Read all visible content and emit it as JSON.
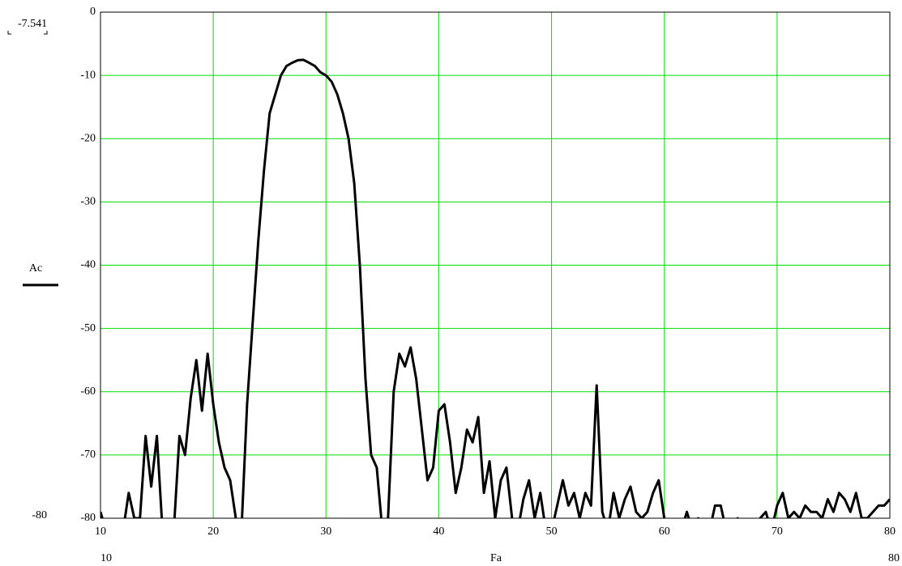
{
  "chart_data": {
    "type": "line",
    "y_label": "Ac",
    "x_label": "Fa",
    "range_labels": {
      "y_top": "-7.541",
      "y_bottom": "-80",
      "x_left": "10",
      "x_right": "80"
    },
    "xlim": [
      10,
      80
    ],
    "ylim": [
      -80,
      0
    ],
    "xticks": [
      10,
      20,
      30,
      40,
      50,
      60,
      70,
      80
    ],
    "yticks": [
      0,
      -10,
      -20,
      -30,
      -40,
      -50,
      -60,
      -70,
      -80
    ],
    "grid": true,
    "grid_color": "#00dd00",
    "x": [
      10,
      10.5,
      11,
      11.5,
      12,
      12.5,
      13,
      13.5,
      14,
      14.5,
      15,
      15.5,
      16,
      16.5,
      17,
      17.5,
      18,
      18.5,
      19,
      19.5,
      20,
      20.5,
      21,
      21.5,
      22,
      22.5,
      23,
      23.5,
      24,
      24.5,
      25,
      25.5,
      26,
      26.5,
      27,
      27.5,
      28,
      28.5,
      29,
      29.5,
      30,
      30.5,
      31,
      31.5,
      32,
      32.5,
      33,
      33.5,
      34,
      34.5,
      35,
      35.5,
      36,
      36.5,
      37,
      37.5,
      38,
      38.5,
      39,
      39.5,
      40,
      40.5,
      41,
      41.5,
      42,
      42.5,
      43,
      43.5,
      44,
      44.5,
      45,
      45.5,
      46,
      46.5,
      47,
      47.5,
      48,
      48.5,
      49,
      49.5,
      50,
      50.5,
      51,
      51.5,
      52,
      52.5,
      53,
      53.5,
      54,
      54.5,
      55,
      55.5,
      56,
      56.5,
      57,
      57.5,
      58,
      58.5,
      59,
      59.5,
      60,
      60.5,
      61,
      61.5,
      62,
      62.5,
      63,
      63.5,
      64,
      64.5,
      65,
      65.5,
      66,
      66.5,
      67,
      67.5,
      68,
      68.5,
      69,
      69.5,
      70,
      70.5,
      71,
      71.5,
      72,
      72.5,
      73,
      73.5,
      74,
      74.5,
      75,
      75.5,
      76,
      76.5,
      77,
      77.5,
      78,
      78.5,
      79,
      79.5,
      80
    ],
    "series": [
      {
        "name": "Ac",
        "color": "#000000",
        "values": [
          -79,
          -82,
          -82,
          -82,
          -82,
          -76,
          -80,
          -80,
          -67,
          -75,
          -67,
          -82,
          -82,
          -82,
          -67,
          -70,
          -61,
          -55,
          -63,
          -54,
          -62,
          -68,
          -72,
          -74,
          -80,
          -82,
          -62,
          -49,
          -36,
          -25,
          -16,
          -13,
          -10,
          -8.5,
          -8,
          -7.6,
          -7.541,
          -8,
          -8.5,
          -9.5,
          -10,
          -11,
          -13,
          -16,
          -20,
          -27,
          -40,
          -58,
          -70,
          -72,
          -82,
          -80,
          -60,
          -54,
          -56,
          -53,
          -58,
          -66,
          -74,
          -72,
          -63,
          -62,
          -68,
          -76,
          -72,
          -66,
          -68,
          -64,
          -76,
          -71,
          -80,
          -74,
          -72,
          -80,
          -82,
          -77,
          -74,
          -80,
          -76,
          -82,
          -82,
          -78,
          -74,
          -78,
          -76,
          -80,
          -76,
          -78,
          -59,
          -79,
          -82,
          -76,
          -80,
          -77,
          -75,
          -79,
          -80,
          -79,
          -76,
          -74,
          -80,
          -82,
          -82,
          -82,
          -79,
          -82,
          -80,
          -82,
          -82,
          -78,
          -78,
          -82,
          -82,
          -80,
          -82,
          -82,
          -82,
          -80,
          -79,
          -82,
          -78,
          -76,
          -80,
          -79,
          -80,
          -78,
          -79,
          -79,
          -80,
          -77,
          -79,
          -76,
          -77,
          -79,
          -76,
          -80,
          -80,
          -79,
          -78,
          -78,
          -77
        ]
      }
    ]
  }
}
